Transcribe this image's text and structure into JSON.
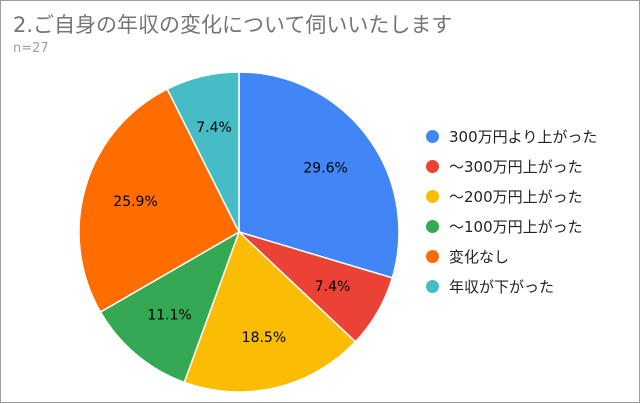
{
  "header": {
    "title": "2.ご自身の年収の変化について伺いいたします",
    "subtitle": "n=27"
  },
  "chart_data": {
    "type": "pie",
    "title": "2.ご自身の年収の変化について伺いいたします",
    "subtitle": "n=27",
    "legend_position": "right",
    "slices": [
      {
        "label": "300万円より上がった",
        "value": 29.6,
        "display": "29.6%",
        "color": "#4285f4"
      },
      {
        "label": "〜300万円上がった",
        "value": 7.4,
        "display": "7.4%",
        "color": "#ea4335"
      },
      {
        "label": "〜200万円上がった",
        "value": 18.5,
        "display": "18.5%",
        "color": "#fbbc04"
      },
      {
        "label": "〜100万円上がった",
        "value": 11.1,
        "display": "11.1%",
        "color": "#34a853"
      },
      {
        "label": "変化なし",
        "value": 25.9,
        "display": "25.9%",
        "color": "#ff6d01"
      },
      {
        "label": "年収が下がった",
        "value": 7.4,
        "display": "7.4%",
        "color": "#46bdc6"
      }
    ]
  }
}
